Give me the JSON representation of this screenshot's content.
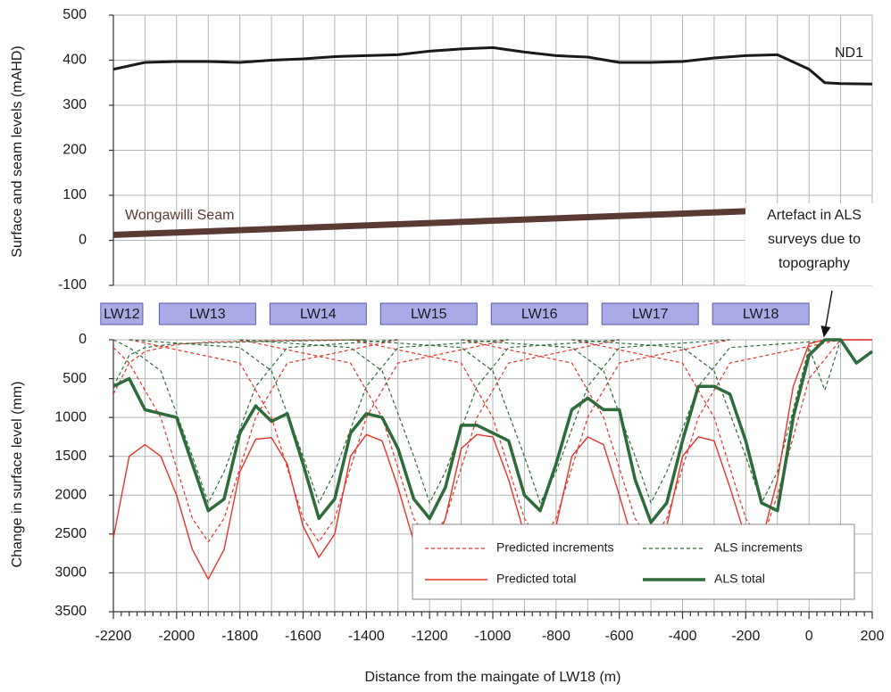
{
  "chart_data": [
    {
      "type": "line",
      "ylabel": "Surface and seam levels (mAHD)",
      "xlim": [
        -2200,
        200
      ],
      "ylim": [
        -100,
        500
      ],
      "yticks": [
        -100,
        0,
        100,
        200,
        300,
        400,
        500
      ],
      "grid": true,
      "series": [
        {
          "name": "ND1",
          "color": "#1a1a1a",
          "width": 3,
          "x": [
            -2200,
            -2100,
            -2000,
            -1900,
            -1800,
            -1700,
            -1600,
            -1500,
            -1400,
            -1300,
            -1200,
            -1100,
            -1000,
            -900,
            -800,
            -700,
            -600,
            -500,
            -400,
            -300,
            -200,
            -100,
            0,
            50,
            100,
            200
          ],
          "values": [
            380,
            395,
            397,
            397,
            395,
            400,
            403,
            408,
            410,
            412,
            420,
            425,
            428,
            418,
            410,
            407,
            395,
            395,
            397,
            405,
            410,
            412,
            380,
            350,
            348,
            347
          ]
        },
        {
          "name": "Wongawilli Seam",
          "color": "#5a3a32",
          "width": 7,
          "x": [
            -2200,
            200
          ],
          "values": [
            12,
            75
          ]
        }
      ]
    },
    {
      "type": "line",
      "ylabel": "Change in surface level (mm)",
      "xlabel": "Distance from the maingate of LW18 (m)",
      "annotation": [
        "Artefact in ALS",
        "surveys due to",
        "topography"
      ],
      "xlim": [
        -2200,
        200
      ],
      "xticks": [
        -2200,
        -2000,
        -1800,
        -1600,
        -1400,
        -1200,
        -1000,
        -800,
        -600,
        -400,
        -200,
        0,
        200
      ],
      "ylim": [
        3500,
        0
      ],
      "yticks": [
        0,
        500,
        1000,
        1500,
        2000,
        2500,
        3000,
        3500
      ],
      "grid": true,
      "panels": [
        {
          "label": "LW12",
          "x": [
            -2240,
            -2107
          ]
        },
        {
          "label": "LW13",
          "x": [
            -2055,
            -1750
          ]
        },
        {
          "label": "LW14",
          "x": [
            -1705,
            -1400
          ]
        },
        {
          "label": "LW15",
          "x": [
            -1355,
            -1050
          ]
        },
        {
          "label": "LW16",
          "x": [
            -1005,
            -700
          ]
        },
        {
          "label": "LW17",
          "x": [
            -655,
            -350
          ]
        },
        {
          "label": "LW18",
          "x": [
            -305,
            0
          ]
        }
      ],
      "x": [
        -2200,
        -2150,
        -2100,
        -2050,
        -2000,
        -1950,
        -1900,
        -1850,
        -1800,
        -1750,
        -1700,
        -1650,
        -1600,
        -1550,
        -1500,
        -1450,
        -1400,
        -1350,
        -1300,
        -1250,
        -1200,
        -1150,
        -1100,
        -1050,
        -1000,
        -950,
        -900,
        -850,
        -800,
        -750,
        -700,
        -650,
        -600,
        -550,
        -500,
        -450,
        -400,
        -350,
        -300,
        -250,
        -200,
        -150,
        -100,
        -50,
        0,
        50,
        100,
        150,
        200
      ],
      "series": [
        {
          "name": "Predicted increments",
          "color": "#e8322a",
          "dash": true,
          "width": 1.2,
          "curves": [
            {
              "x": [
                -2200,
                -2150,
                -2100,
                -2000,
                -1900,
                -1700,
                -1400
              ],
              "values": [
                700,
                300,
                150,
                60,
                30,
                10,
                0
              ]
            },
            {
              "x": [
                -2200,
                -2150,
                -2050,
                -1950,
                -1900,
                -1850,
                -1750,
                -1650,
                -1300
              ],
              "values": [
                100,
                300,
                1000,
                2300,
                2600,
                2300,
                1000,
                300,
                0
              ]
            },
            {
              "x": [
                -2150,
                -1800,
                -1700,
                -1600,
                -1550,
                -1500,
                -1400,
                -1300,
                -950
              ],
              "values": [
                0,
                300,
                1000,
                2300,
                2600,
                2300,
                1000,
                300,
                0
              ]
            },
            {
              "x": [
                -1800,
                -1450,
                -1350,
                -1250,
                -1200,
                -1150,
                -1050,
                -950,
                -600
              ],
              "values": [
                0,
                300,
                1000,
                2300,
                2600,
                2300,
                1000,
                300,
                0
              ]
            },
            {
              "x": [
                -1450,
                -1100,
                -1000,
                -900,
                -850,
                -800,
                -700,
                -600,
                -250
              ],
              "values": [
                0,
                300,
                1000,
                2300,
                2600,
                2300,
                1000,
                300,
                0
              ]
            },
            {
              "x": [
                -1100,
                -750,
                -650,
                -550,
                -500,
                -450,
                -350,
                -250,
                100
              ],
              "values": [
                0,
                300,
                1000,
                2300,
                2600,
                2300,
                1000,
                300,
                0
              ]
            },
            {
              "x": [
                -750,
                -400,
                -300,
                -200,
                -150,
                -100,
                0,
                100,
                200
              ],
              "values": [
                0,
                300,
                1000,
                2300,
                2600,
                2000,
                500,
                0,
                0
              ]
            }
          ]
        },
        {
          "name": "ALS increments",
          "color": "#2e6b3a",
          "dash": true,
          "width": 1.2,
          "curves": [
            {
              "x": [
                -2200,
                -2150,
                -2100,
                -2000,
                -1900,
                -1700,
                -1400
              ],
              "values": [
                600,
                200,
                100,
                50,
                40,
                20,
                0
              ]
            },
            {
              "x": [
                -2200,
                -2150,
                -2050,
                -1950,
                -1900,
                -1850,
                -1750,
                -1650,
                -1300
              ],
              "values": [
                0,
                100,
                400,
                1500,
                2100,
                1700,
                600,
                100,
                0
              ]
            },
            {
              "x": [
                -2150,
                -1800,
                -1700,
                -1600,
                -1550,
                -1500,
                -1400,
                -1300,
                -950
              ],
              "values": [
                0,
                100,
                400,
                1500,
                2100,
                1700,
                600,
                100,
                0
              ]
            },
            {
              "x": [
                -1800,
                -1450,
                -1350,
                -1250,
                -1200,
                -1150,
                -1050,
                -950,
                -600
              ],
              "values": [
                0,
                100,
                400,
                1500,
                2100,
                1700,
                600,
                100,
                0
              ]
            },
            {
              "x": [
                -1450,
                -1100,
                -1000,
                -900,
                -850,
                -800,
                -700,
                -600,
                -250
              ],
              "values": [
                0,
                100,
                400,
                1500,
                2100,
                1700,
                600,
                100,
                0
              ]
            },
            {
              "x": [
                -1100,
                -750,
                -650,
                -550,
                -500,
                -450,
                -350,
                -250,
                100
              ],
              "values": [
                0,
                100,
                400,
                1500,
                2100,
                1700,
                600,
                100,
                0
              ]
            },
            {
              "x": [
                -750,
                -400,
                -300,
                -200,
                -150,
                -100,
                0,
                50,
                100,
                200
              ],
              "values": [
                0,
                100,
                400,
                1500,
                2100,
                1700,
                100,
                650,
                0,
                0
              ]
            }
          ]
        },
        {
          "name": "Predicted total",
          "color": "#e8322a",
          "width": 1.4,
          "values": [
            2550,
            1500,
            1350,
            1500,
            2000,
            2700,
            3080,
            2700,
            1700,
            1280,
            1260,
            1600,
            2400,
            2800,
            2500,
            1500,
            1220,
            1300,
            1900,
            2600,
            2790,
            2300,
            1400,
            1220,
            1250,
            1800,
            2500,
            2780,
            2400,
            1500,
            1250,
            1350,
            2000,
            2700,
            2870,
            2400,
            1500,
            1250,
            1300,
            1900,
            2550,
            2600,
            1800,
            600,
            50,
            0,
            0,
            0,
            0
          ]
        },
        {
          "name": "ALS total",
          "color": "#2e6b3a",
          "width": 3.5,
          "values": [
            600,
            500,
            900,
            950,
            1000,
            1600,
            2200,
            2050,
            1200,
            850,
            1050,
            950,
            1600,
            2300,
            2050,
            1200,
            950,
            1000,
            1400,
            2050,
            2300,
            1900,
            1100,
            1100,
            1200,
            1300,
            2000,
            2200,
            1600,
            900,
            750,
            900,
            900,
            1800,
            2350,
            2100,
            1300,
            600,
            600,
            700,
            1300,
            2100,
            2200,
            1000,
            200,
            0,
            0,
            300,
            150
          ]
        }
      ]
    }
  ]
}
